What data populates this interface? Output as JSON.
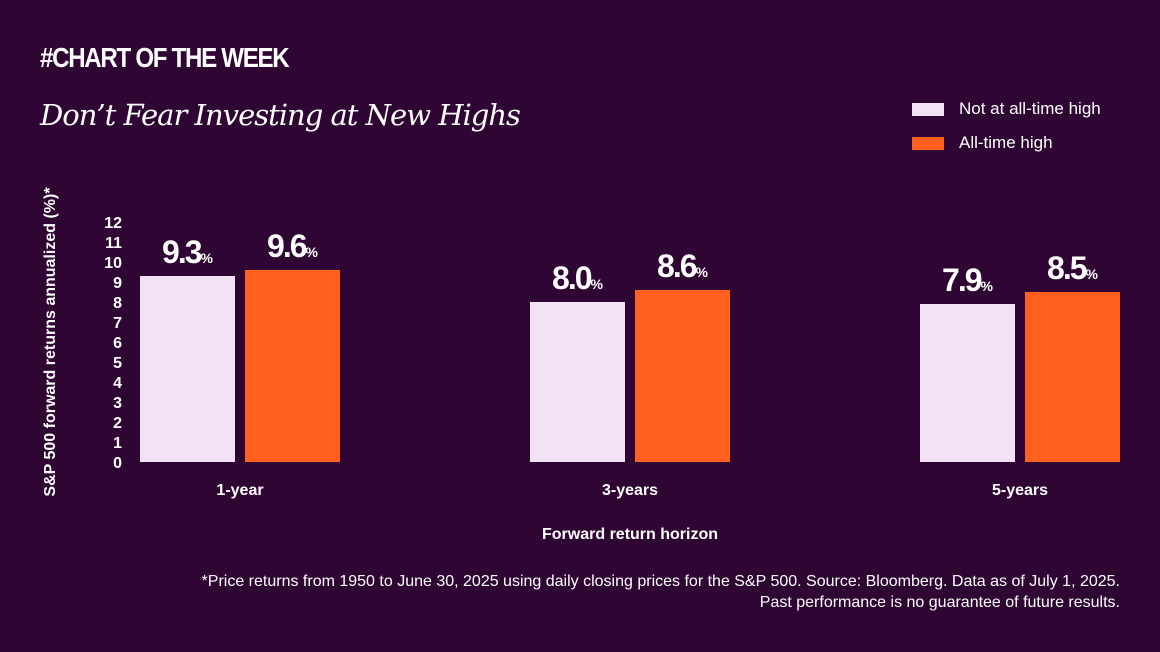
{
  "header": {
    "hashtag": "#CHART OF THE WEEK",
    "title": "Don’t Fear Investing at New Highs"
  },
  "colors": {
    "background": "#2f0633",
    "accent": "#ff5f1f",
    "light_bar": "#f3e1f5",
    "text": "#ffffff"
  },
  "chart_data": {
    "type": "bar",
    "categories": [
      "1-year",
      "3-years",
      "5-years"
    ],
    "series": [
      {
        "name": "Not at all-time high",
        "values": [
          9.3,
          8.0,
          7.9
        ],
        "labels": [
          "9.3",
          "8.0",
          "7.9"
        ],
        "color": "#f3e1f5"
      },
      {
        "name": "All-time high",
        "values": [
          9.6,
          8.6,
          8.5
        ],
        "labels": [
          "9.6",
          "8.6",
          "8.5"
        ],
        "color": "#ff5f1f"
      }
    ],
    "value_suffix": "%",
    "xlabel": "Forward return horizon",
    "ylabel": "S&P 500 forward returns annualized (%)*",
    "ylim": [
      0,
      12
    ],
    "yticks": [
      "0",
      "1",
      "2",
      "3",
      "4",
      "5",
      "6",
      "7",
      "8",
      "9",
      "10",
      "11",
      "12"
    ],
    "grid": false,
    "legend_position": "top-right"
  },
  "footnote": {
    "line1": "*Price returns from 1950 to June 30, 2025 using daily closing prices for the S&P 500. Source: Bloomberg. Data as of July 1, 2025.",
    "line2": "Past performance is no guarantee of future results."
  }
}
